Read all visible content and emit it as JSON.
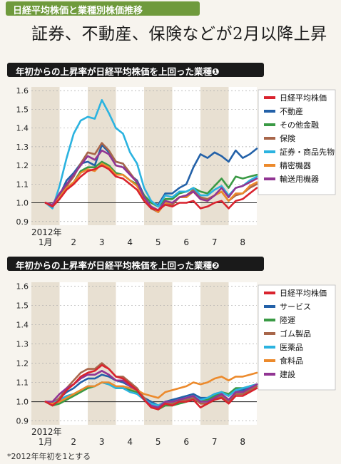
{
  "banner": "日経平均株価と業種別株価推移",
  "headline": "証券、不動産、保険などが2月以降上昇",
  "footnote": "*2012年年初を1とする",
  "colors": {
    "nikkei": "#d9232e",
    "realestate": "#2361a8",
    "otherfin": "#3a9a45",
    "insurance": "#a8664a",
    "securities": "#2bb3e0",
    "precision": "#ec8a2c",
    "transport": "#913593",
    "services": "#2361a8",
    "landtransport": "#3a9a45",
    "rubber": "#a8664a",
    "pharma": "#2bb3e0",
    "food": "#ec8a2c",
    "construction": "#913593"
  },
  "chart_data": [
    {
      "type": "line",
      "title": "年初からの上昇率が日経平均株価を上回った業種❶",
      "xlabel": "",
      "ylabel": "",
      "ylim": [
        0.88,
        1.62
      ],
      "yticks": [
        "1.6",
        "1.5",
        "1.4",
        "1.3",
        "1.2",
        "1.1",
        "1.0",
        "0.9"
      ],
      "xticks": [
        "1月",
        "2",
        "3",
        "4",
        "5",
        "6",
        "7",
        "8"
      ],
      "year_label": "2012年",
      "legend_position": "right",
      "x": [
        0,
        0.25,
        0.5,
        0.75,
        1,
        1.25,
        1.5,
        1.75,
        2,
        2.25,
        2.5,
        2.75,
        3,
        3.25,
        3.5,
        3.75,
        4,
        4.25,
        4.5,
        4.75,
        5,
        5.25,
        5.5,
        5.75,
        6,
        6.25,
        6.5,
        6.75,
        7,
        7.25,
        7.5
      ],
      "series": [
        {
          "name": "日経平均株価",
          "key": "nikkei",
          "values": [
            1.0,
            0.98,
            1.02,
            1.07,
            1.1,
            1.14,
            1.17,
            1.18,
            1.2,
            1.18,
            1.14,
            1.13,
            1.1,
            1.07,
            1.01,
            0.97,
            0.96,
            0.99,
            0.98,
            1.0,
            1.0,
            1.01,
            0.97,
            0.98,
            1.0,
            1.01,
            0.97,
            1.01,
            1.02,
            1.05,
            1.08
          ]
        },
        {
          "name": "不動産",
          "key": "realestate",
          "values": [
            1.0,
            0.98,
            1.04,
            1.12,
            1.16,
            1.21,
            1.22,
            1.2,
            1.31,
            1.27,
            1.22,
            1.21,
            1.15,
            1.12,
            1.04,
            1.0,
            0.99,
            1.05,
            1.05,
            1.08,
            1.1,
            1.19,
            1.26,
            1.24,
            1.27,
            1.25,
            1.22,
            1.28,
            1.24,
            1.26,
            1.29
          ]
        },
        {
          "name": "その他金融",
          "key": "otherfin",
          "values": [
            1.0,
            0.98,
            1.03,
            1.08,
            1.11,
            1.17,
            1.19,
            1.19,
            1.22,
            1.2,
            1.16,
            1.15,
            1.12,
            1.1,
            1.04,
            1.0,
            0.98,
            1.02,
            1.02,
            1.05,
            1.06,
            1.08,
            1.06,
            1.05,
            1.09,
            1.13,
            1.08,
            1.14,
            1.13,
            1.14,
            1.15
          ]
        },
        {
          "name": "保険",
          "key": "insurance",
          "values": [
            1.0,
            0.98,
            1.03,
            1.09,
            1.14,
            1.21,
            1.27,
            1.26,
            1.32,
            1.28,
            1.22,
            1.21,
            1.16,
            1.11,
            1.02,
            0.97,
            0.95,
            1.0,
            0.99,
            1.03,
            1.04,
            1.07,
            1.03,
            1.02,
            1.04,
            1.06,
            1.01,
            1.04,
            1.05,
            1.08,
            1.1
          ]
        },
        {
          "name": "証券・商品先物",
          "key": "securities",
          "values": [
            1.0,
            0.97,
            1.09,
            1.24,
            1.37,
            1.44,
            1.46,
            1.45,
            1.55,
            1.48,
            1.4,
            1.37,
            1.27,
            1.21,
            1.08,
            1.01,
            0.98,
            1.04,
            1.03,
            1.06,
            1.06,
            1.08,
            1.04,
            1.04,
            1.07,
            1.09,
            1.04,
            1.08,
            1.09,
            1.12,
            1.14
          ]
        },
        {
          "name": "精密機器",
          "key": "precision",
          "values": [
            1.0,
            0.99,
            1.03,
            1.08,
            1.11,
            1.16,
            1.18,
            1.17,
            1.21,
            1.19,
            1.15,
            1.15,
            1.12,
            1.09,
            1.02,
            0.98,
            0.95,
            1.0,
            1.0,
            1.03,
            1.03,
            1.06,
            1.02,
            1.01,
            1.04,
            1.06,
            1.01,
            1.05,
            1.05,
            1.09,
            1.11
          ]
        },
        {
          "name": "輸送用機器",
          "key": "transport",
          "values": [
            1.0,
            0.99,
            1.05,
            1.1,
            1.15,
            1.2,
            1.25,
            1.23,
            1.28,
            1.26,
            1.2,
            1.19,
            1.15,
            1.11,
            1.03,
            0.98,
            0.96,
            1.01,
            1.0,
            1.03,
            1.04,
            1.06,
            1.02,
            1.01,
            1.04,
            1.08,
            1.03,
            1.08,
            1.09,
            1.11,
            1.13
          ]
        }
      ]
    },
    {
      "type": "line",
      "title": "年初からの上昇率が日経平均株価を上回った業種❷",
      "xlabel": "",
      "ylabel": "",
      "ylim": [
        0.88,
        1.62
      ],
      "yticks": [
        "1.6",
        "1.5",
        "1.4",
        "1.3",
        "1.2",
        "1.1",
        "1.0",
        "0.9"
      ],
      "xticks": [
        "1月",
        "2",
        "3",
        "4",
        "5",
        "6",
        "7",
        "8"
      ],
      "year_label": "2012年",
      "legend_position": "right",
      "x": [
        0,
        0.25,
        0.5,
        0.75,
        1,
        1.25,
        1.5,
        1.75,
        2,
        2.25,
        2.5,
        2.75,
        3,
        3.25,
        3.5,
        3.75,
        4,
        4.25,
        4.5,
        4.75,
        5,
        5.25,
        5.5,
        5.75,
        6,
        6.25,
        6.5,
        6.75,
        7,
        7.25,
        7.5
      ],
      "series": [
        {
          "name": "日経平均株価",
          "key": "nikkei",
          "values": [
            1.0,
            0.98,
            1.01,
            1.06,
            1.09,
            1.13,
            1.15,
            1.16,
            1.19,
            1.17,
            1.13,
            1.12,
            1.09,
            1.06,
            1.01,
            0.97,
            0.96,
            0.99,
            0.98,
            1.0,
            1.0,
            1.01,
            0.97,
            0.99,
            1.01,
            1.02,
            0.99,
            1.03,
            1.03,
            1.05,
            1.07
          ]
        },
        {
          "name": "サービス",
          "key": "services",
          "values": [
            1.0,
            0.99,
            1.02,
            1.05,
            1.07,
            1.1,
            1.12,
            1.12,
            1.14,
            1.13,
            1.11,
            1.1,
            1.08,
            1.06,
            1.02,
            1.0,
            0.98,
            1.0,
            1.01,
            1.02,
            1.03,
            1.04,
            1.02,
            1.02,
            1.04,
            1.05,
            1.03,
            1.06,
            1.06,
            1.08,
            1.09
          ]
        },
        {
          "name": "陸運",
          "key": "landtransport",
          "values": [
            1.0,
            0.98,
            0.99,
            1.01,
            1.03,
            1.05,
            1.07,
            1.08,
            1.1,
            1.09,
            1.07,
            1.07,
            1.06,
            1.05,
            1.01,
            0.98,
            0.96,
            0.98,
            0.98,
            0.99,
            1.0,
            1.02,
            1.01,
            1.01,
            1.03,
            1.05,
            1.04,
            1.07,
            1.07,
            1.08,
            1.09
          ]
        },
        {
          "name": "ゴム製品",
          "key": "rubber",
          "values": [
            1.0,
            0.99,
            1.02,
            1.07,
            1.11,
            1.15,
            1.17,
            1.17,
            1.2,
            1.17,
            1.13,
            1.13,
            1.1,
            1.07,
            1.02,
            0.98,
            0.96,
            0.99,
            0.99,
            1.01,
            1.01,
            1.02,
            0.99,
            0.99,
            1.01,
            1.03,
            1.0,
            1.04,
            1.04,
            1.06,
            1.08
          ]
        },
        {
          "name": "医薬品",
          "key": "pharma",
          "values": [
            1.0,
            0.99,
            1.01,
            1.03,
            1.04,
            1.06,
            1.08,
            1.08,
            1.1,
            1.09,
            1.07,
            1.07,
            1.05,
            1.04,
            1.01,
            0.99,
            0.98,
            1.0,
            1.0,
            1.01,
            1.02,
            1.03,
            1.01,
            1.02,
            1.04,
            1.05,
            1.03,
            1.06,
            1.07,
            1.08,
            1.09
          ]
        },
        {
          "name": "食料品",
          "key": "food",
          "values": [
            1.0,
            0.99,
            1.0,
            1.02,
            1.04,
            1.06,
            1.08,
            1.08,
            1.1,
            1.1,
            1.08,
            1.08,
            1.07,
            1.06,
            1.04,
            1.03,
            1.02,
            1.05,
            1.06,
            1.07,
            1.08,
            1.1,
            1.09,
            1.1,
            1.12,
            1.13,
            1.11,
            1.13,
            1.13,
            1.14,
            1.15
          ]
        },
        {
          "name": "建設",
          "key": "construction",
          "values": [
            1.0,
            1.0,
            1.04,
            1.07,
            1.09,
            1.12,
            1.14,
            1.14,
            1.16,
            1.14,
            1.11,
            1.11,
            1.08,
            1.06,
            1.01,
            0.98,
            0.97,
            1.0,
            1.0,
            1.01,
            1.02,
            1.03,
            1.0,
            1.0,
            1.02,
            1.04,
            1.01,
            1.05,
            1.05,
            1.07,
            1.09
          ]
        }
      ]
    }
  ]
}
